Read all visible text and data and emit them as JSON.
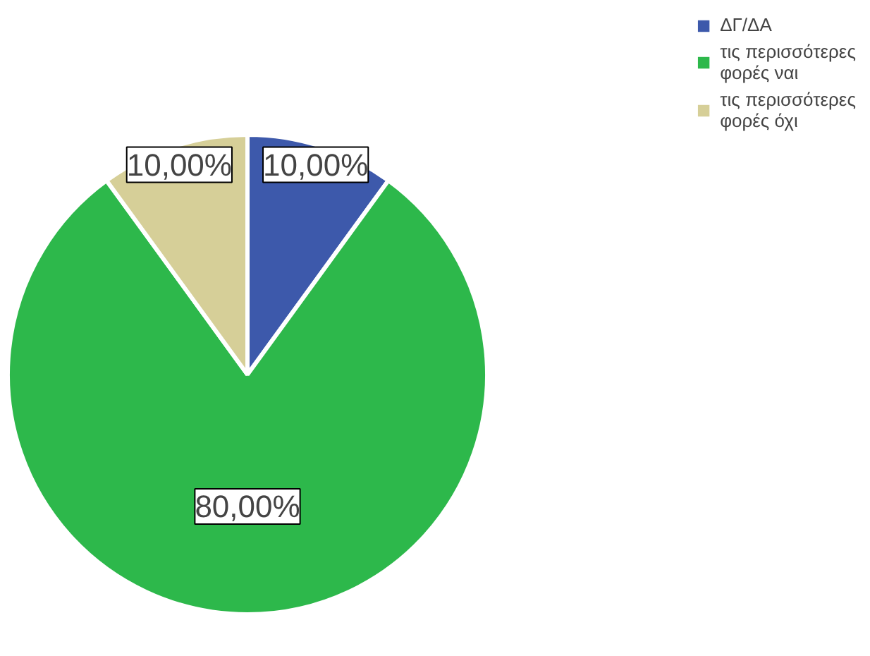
{
  "chart_data": {
    "type": "pie",
    "categories": [
      "ΔΓ/ΔΑ",
      "τις περισσότερες φορές ναι",
      "τις περισσότερες φορές όχι"
    ],
    "values": [
      10,
      80,
      10
    ],
    "colors": [
      "#3d59ab",
      "#2db84b",
      "#d6cf98"
    ],
    "value_labels": [
      "10,00%",
      "80,00%",
      "10,00%"
    ],
    "legend": "top right"
  }
}
